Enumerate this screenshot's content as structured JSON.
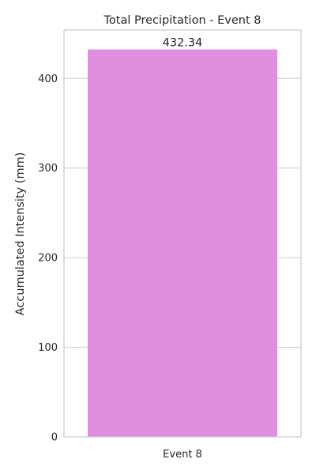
{
  "chart_data": {
    "type": "bar",
    "title": "Total Precipitation - Event 8",
    "xlabel": "",
    "ylabel": "Accumulated Intensity (mm)",
    "categories": [
      "Event 8"
    ],
    "values": [
      432.34
    ],
    "value_labels": [
      "432.34"
    ],
    "yticks": [
      0,
      100,
      200,
      300,
      400
    ],
    "ylim": [
      0,
      454
    ],
    "grid": true,
    "legend": "none",
    "bar_color": "#e08ee0"
  }
}
